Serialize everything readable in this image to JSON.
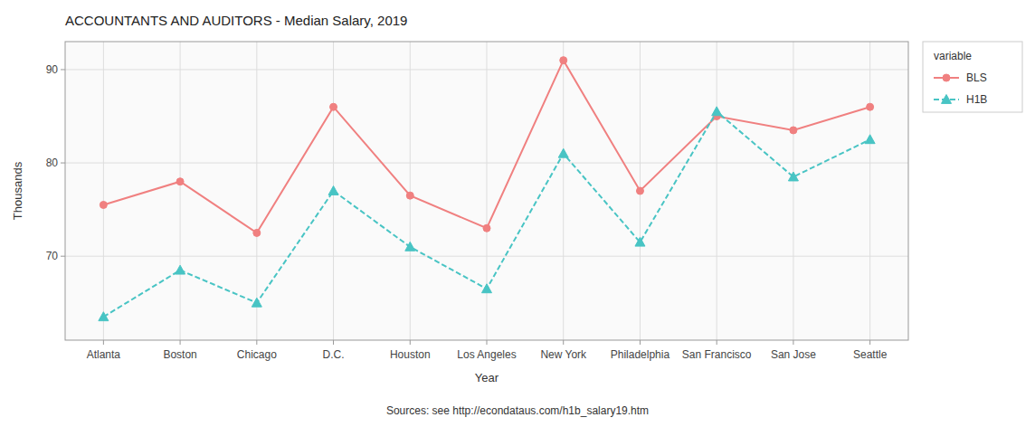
{
  "chart_data": {
    "type": "line",
    "title": "ACCOUNTANTS AND AUDITORS - Median Salary, 2019",
    "categories": [
      "Atlanta",
      "Boston",
      "Chicago",
      "D.C.",
      "Houston",
      "Los Angeles",
      "New York",
      "Philadelphia",
      "San Francisco",
      "San Jose",
      "Seattle"
    ],
    "series": [
      {
        "name": "BLS",
        "color": "#F08080",
        "marker": "circle",
        "line_style": "solid",
        "values": [
          75.5,
          78.0,
          72.5,
          86.0,
          76.5,
          73.0,
          91.0,
          77.0,
          85.0,
          83.5,
          86.0
        ]
      },
      {
        "name": "H1B",
        "color": "#48C4C4",
        "marker": "triangle",
        "line_style": "dashed",
        "values": [
          63.5,
          68.5,
          65.0,
          77.0,
          71.0,
          66.5,
          81.0,
          71.5,
          85.5,
          78.5,
          82.5
        ]
      }
    ],
    "x_label": "Year",
    "y_label": "Thousands",
    "legend_title": "variable",
    "source": "Sources: see http://econdataus.com/h1b_salary19.htm",
    "ylim": [
      61,
      93
    ],
    "yticks": [
      70,
      80,
      90
    ],
    "grid": true,
    "legend": "right"
  }
}
